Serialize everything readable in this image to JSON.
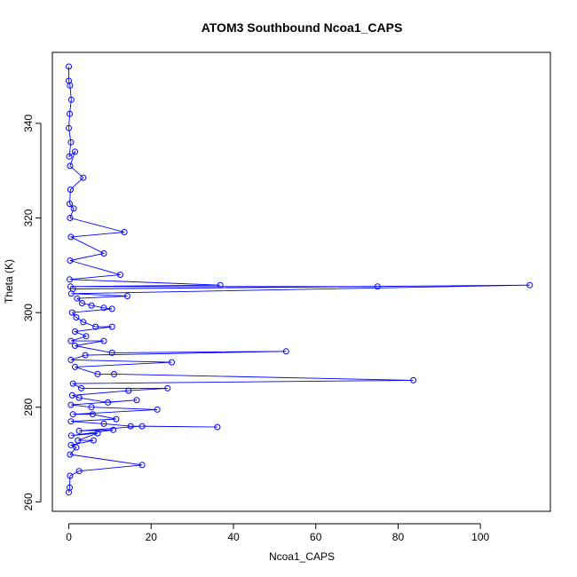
{
  "chart_data": {
    "type": "line",
    "title": "ATOM3 Southbound Ncoa1_CAPS",
    "xlabel": "Ncoa1_CAPS",
    "ylabel": "Theta (K)",
    "xlim": [
      -4,
      117
    ],
    "ylim": [
      258,
      355
    ],
    "x_ticks": [
      0,
      20,
      40,
      60,
      80,
      100
    ],
    "y_ticks": [
      260,
      280,
      300,
      320,
      340
    ],
    "grid": false,
    "legend": "none",
    "colors": {
      "series": "#0000ff",
      "axes": "#000000"
    },
    "series": [
      {
        "markers": "open-circle",
        "points": [
          [
            0,
            352
          ],
          [
            0,
            349
          ],
          [
            0.3,
            348
          ],
          [
            0.6,
            345
          ],
          [
            0.2,
            342
          ],
          [
            0,
            339
          ],
          [
            0.5,
            336
          ],
          [
            0.1,
            333
          ],
          [
            1.5,
            334
          ],
          [
            0.3,
            331
          ],
          [
            3.5,
            328.5
          ],
          [
            0.4,
            326
          ],
          [
            0.2,
            323
          ],
          [
            1.2,
            322
          ],
          [
            0.3,
            320
          ],
          [
            13.5,
            317
          ],
          [
            0.5,
            316
          ],
          [
            8.5,
            312.5
          ],
          [
            0.3,
            311
          ],
          [
            12.5,
            308
          ],
          [
            0.2,
            307
          ],
          [
            36.8,
            305.8
          ],
          [
            0.4,
            305.5
          ],
          [
            75,
            305.5
          ],
          [
            1.0,
            305
          ],
          [
            112,
            305.8
          ],
          [
            0.6,
            304
          ],
          [
            14.2,
            303.5
          ],
          [
            2.0,
            303
          ],
          [
            3.2,
            302
          ],
          [
            5.5,
            301.5
          ],
          [
            8.5,
            301
          ],
          [
            10.5,
            300.8
          ],
          [
            0.8,
            300
          ],
          [
            1.8,
            299
          ],
          [
            3.5,
            298
          ],
          [
            6.5,
            297
          ],
          [
            10.5,
            297
          ],
          [
            1.5,
            296
          ],
          [
            4.2,
            295
          ],
          [
            0.5,
            294
          ],
          [
            8.5,
            294
          ],
          [
            1.5,
            293
          ],
          [
            10.5,
            291.5
          ],
          [
            52.8,
            291.8
          ],
          [
            4.0,
            291
          ],
          [
            0.5,
            290
          ],
          [
            25,
            289.5
          ],
          [
            1.5,
            288.5
          ],
          [
            7.0,
            287
          ],
          [
            11,
            287
          ],
          [
            83.7,
            285.7
          ],
          [
            1.0,
            285
          ],
          [
            3.0,
            284
          ],
          [
            24,
            284
          ],
          [
            14.5,
            283.5
          ],
          [
            0.8,
            282.5
          ],
          [
            2.5,
            282
          ],
          [
            9.5,
            281
          ],
          [
            16.5,
            281.5
          ],
          [
            0.5,
            280.5
          ],
          [
            5.5,
            280
          ],
          [
            21.5,
            279.5
          ],
          [
            1.0,
            278.5
          ],
          [
            5.8,
            278.5
          ],
          [
            11.5,
            277.5
          ],
          [
            0.5,
            277
          ],
          [
            8.5,
            276.5
          ],
          [
            15.0,
            276
          ],
          [
            36.1,
            275.8
          ],
          [
            17.8,
            276
          ],
          [
            2.5,
            275
          ],
          [
            10.8,
            275.2
          ],
          [
            0.6,
            274
          ],
          [
            7.0,
            274.5
          ],
          [
            2.2,
            273
          ],
          [
            6.0,
            273
          ],
          [
            0.5,
            272
          ],
          [
            1.8,
            271.5
          ],
          [
            0.3,
            270
          ],
          [
            17.8,
            267.8
          ],
          [
            2.5,
            266.5
          ],
          [
            0.3,
            265.5
          ],
          [
            0.2,
            263
          ],
          [
            0,
            262
          ]
        ]
      }
    ]
  }
}
